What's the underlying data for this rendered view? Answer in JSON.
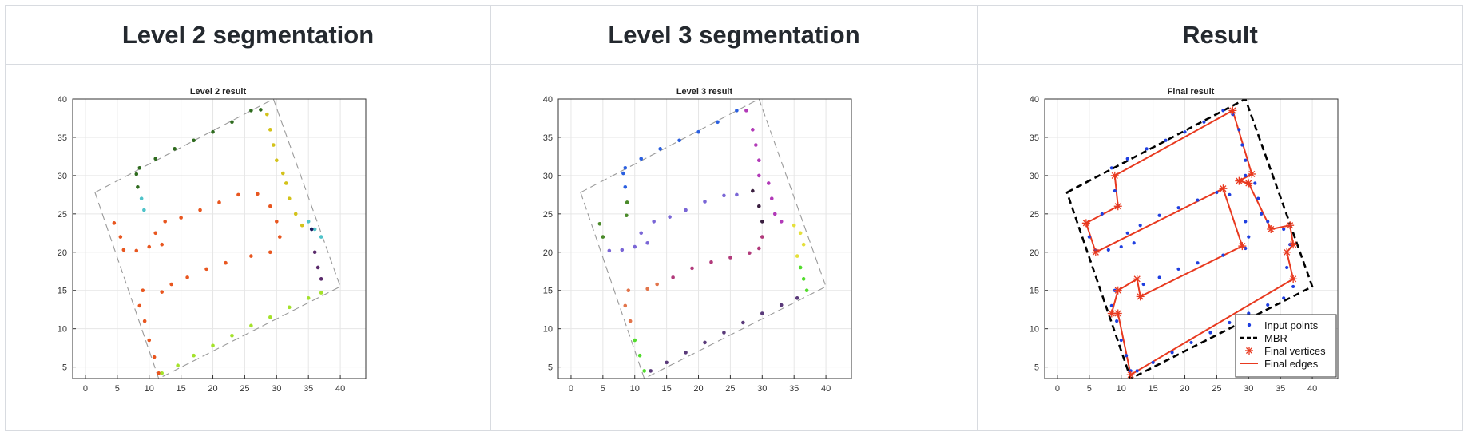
{
  "headers": [
    "Level 2 segmentation",
    "Level 3 segmentation",
    "Result"
  ],
  "panels": [
    {
      "title": "Level 2 result"
    },
    {
      "title": "Level 3 result"
    },
    {
      "title": "Final result"
    }
  ],
  "legend": [
    "Input points",
    "MBR",
    "Final vertices",
    "Final edges"
  ],
  "colors": {
    "points_blue": "#1f3fe0",
    "mbr": "#000000",
    "vertices_red": "#e8391f",
    "edges_red": "#e8391f"
  },
  "chart_data": [
    {
      "type": "scatter",
      "title": "Level 2 result",
      "xlim": [
        -2,
        44
      ],
      "ylim": [
        3.5,
        40
      ],
      "xticks": [
        "0",
        "5",
        "10",
        "15",
        "20",
        "25",
        "30",
        "35",
        "40"
      ],
      "yticks": [
        "5",
        "10",
        "15",
        "20",
        "25",
        "30",
        "35",
        "40"
      ],
      "grid": true,
      "mbr": [
        [
          1.5,
          27.8
        ],
        [
          29.5,
          40
        ],
        [
          40,
          15.5
        ],
        [
          11.5,
          3.5
        ]
      ],
      "series": [
        {
          "color": "#2e6b1e",
          "values": [
            [
              8.5,
              31
            ],
            [
              11,
              32.2
            ],
            [
              14,
              33.5
            ],
            [
              17,
              34.6
            ],
            [
              20,
              35.7
            ],
            [
              23,
              37
            ],
            [
              26,
              38.5
            ],
            [
              27.5,
              38.6
            ],
            [
              8,
              30.2
            ],
            [
              8.2,
              28.5
            ]
          ]
        },
        {
          "color": "#d3c21a",
          "values": [
            [
              28.5,
              38
            ],
            [
              29,
              36
            ],
            [
              29.5,
              34
            ],
            [
              30,
              32
            ],
            [
              31,
              30.3
            ],
            [
              31.5,
              29
            ],
            [
              32,
              27
            ],
            [
              33,
              25
            ],
            [
              34,
              23.5
            ]
          ]
        },
        {
          "color": "#4fc3c9",
          "values": [
            [
              8.8,
              27
            ],
            [
              9.2,
              25.5
            ],
            [
              35,
              24
            ],
            [
              36,
              23
            ],
            [
              37,
              22
            ]
          ]
        },
        {
          "color": "#e8561f",
          "values": [
            [
              4.5,
              23.8
            ],
            [
              5.5,
              22
            ],
            [
              6,
              20.3
            ],
            [
              8,
              20.2
            ],
            [
              10,
              20.7
            ],
            [
              12,
              21
            ],
            [
              11,
              22.5
            ],
            [
              12.5,
              24
            ],
            [
              15,
              24.5
            ],
            [
              18,
              25.5
            ],
            [
              21,
              26.5
            ],
            [
              24,
              27.5
            ],
            [
              27,
              27.6
            ],
            [
              29,
              26
            ],
            [
              30,
              24
            ],
            [
              30.5,
              22
            ],
            [
              29,
              20
            ],
            [
              26,
              19.5
            ],
            [
              22,
              18.6
            ],
            [
              19,
              17.8
            ],
            [
              16,
              16.7
            ],
            [
              13.5,
              15.8
            ],
            [
              12,
              14.8
            ],
            [
              9,
              15
            ],
            [
              8.5,
              13
            ],
            [
              9.3,
              11
            ],
            [
              10,
              8.5
            ],
            [
              10.8,
              6.3
            ],
            [
              11.5,
              4.2
            ]
          ]
        },
        {
          "color": "#a4e22b",
          "values": [
            [
              12,
              4.2
            ],
            [
              14.5,
              5.2
            ],
            [
              17,
              6.5
            ],
            [
              20,
              7.8
            ],
            [
              23,
              9.1
            ],
            [
              26,
              10.4
            ],
            [
              29,
              11.5
            ],
            [
              32,
              12.8
            ],
            [
              35,
              14
            ],
            [
              37,
              14.7
            ]
          ]
        },
        {
          "color": "#1a1a5e",
          "values": [
            [
              35.5,
              23
            ]
          ]
        },
        {
          "color": "#5a2a6b",
          "values": [
            [
              36,
              20
            ],
            [
              36.5,
              18
            ],
            [
              37,
              16.5
            ]
          ]
        }
      ]
    },
    {
      "type": "scatter",
      "title": "Level 3 result",
      "xlim": [
        -2,
        44
      ],
      "ylim": [
        3.5,
        40
      ],
      "xticks": [
        "0",
        "5",
        "10",
        "15",
        "20",
        "25",
        "30",
        "35",
        "40"
      ],
      "yticks": [
        "5",
        "10",
        "15",
        "20",
        "25",
        "30",
        "35",
        "40"
      ],
      "grid": true,
      "mbr": [
        [
          1.5,
          27.8
        ],
        [
          29.5,
          40
        ],
        [
          40,
          15.5
        ],
        [
          11.5,
          3.5
        ]
      ],
      "series": [
        {
          "color": "#2a5fe0",
          "values": [
            [
              8.5,
              31
            ],
            [
              11,
              32.2
            ],
            [
              14,
              33.5
            ],
            [
              17,
              34.6
            ],
            [
              20,
              35.7
            ],
            [
              23,
              37
            ],
            [
              26,
              38.5
            ],
            [
              8.2,
              30.3
            ],
            [
              8.5,
              28.5
            ]
          ]
        },
        {
          "color": "#b23ab8",
          "values": [
            [
              27.5,
              38.5
            ],
            [
              28.5,
              36
            ],
            [
              29,
              34
            ],
            [
              29.5,
              32
            ],
            [
              29.5,
              30
            ],
            [
              31,
              29
            ],
            [
              31.5,
              27
            ],
            [
              32,
              25
            ],
            [
              33,
              24
            ]
          ]
        },
        {
          "color": "#4a8a2a",
          "values": [
            [
              8.8,
              26.5
            ],
            [
              8.7,
              24.8
            ],
            [
              4.5,
              23.7
            ],
            [
              5,
              22
            ]
          ]
        },
        {
          "color": "#7a66d6",
          "values": [
            [
              6,
              20.2
            ],
            [
              8,
              20.3
            ],
            [
              10,
              20.7
            ],
            [
              12,
              21.2
            ],
            [
              11,
              22.5
            ],
            [
              13,
              24
            ],
            [
              15.5,
              24.6
            ],
            [
              18,
              25.5
            ],
            [
              21,
              26.6
            ],
            [
              24,
              27.4
            ],
            [
              26,
              27.5
            ]
          ]
        },
        {
          "color": "#b13a7b",
          "values": [
            [
              16,
              16.7
            ],
            [
              19,
              17.9
            ],
            [
              22,
              18.7
            ],
            [
              25,
              19.3
            ],
            [
              28,
              19.9
            ],
            [
              29.5,
              20.5
            ],
            [
              30,
              22
            ]
          ]
        },
        {
          "color": "#e2744a",
          "values": [
            [
              9,
              15
            ],
            [
              12,
              15.2
            ],
            [
              13.5,
              15.8
            ],
            [
              8.5,
              13
            ],
            [
              9.3,
              11
            ]
          ]
        },
        {
          "color": "#52dc2d",
          "values": [
            [
              10,
              8.5
            ],
            [
              10.8,
              6.5
            ],
            [
              11.5,
              4.5
            ],
            [
              36,
              18
            ],
            [
              36.5,
              16.5
            ],
            [
              37,
              15
            ]
          ]
        },
        {
          "color": "#5a3a7a",
          "values": [
            [
              12.5,
              4.5
            ],
            [
              15,
              5.6
            ],
            [
              18,
              6.9
            ],
            [
              21,
              8.2
            ],
            [
              24,
              9.5
            ],
            [
              27,
              10.8
            ],
            [
              30,
              12
            ],
            [
              33,
              13.1
            ],
            [
              35.5,
              14
            ]
          ]
        },
        {
          "color": "#e5e03a",
          "values": [
            [
              35,
              23.5
            ],
            [
              36,
              22.5
            ],
            [
              36.5,
              21
            ],
            [
              35.5,
              19.5
            ]
          ]
        },
        {
          "color": "#3a1e3f",
          "values": [
            [
              28.5,
              28
            ],
            [
              29.5,
              26
            ],
            [
              30,
              24
            ]
          ]
        }
      ]
    },
    {
      "type": "scatter",
      "title": "Final result",
      "xlim": [
        -2,
        44
      ],
      "ylim": [
        3.5,
        40
      ],
      "xticks": [
        "0",
        "5",
        "10",
        "15",
        "20",
        "25",
        "30",
        "35",
        "40"
      ],
      "yticks": [
        "5",
        "10",
        "15",
        "20",
        "25",
        "30",
        "35",
        "40"
      ],
      "grid": true,
      "mbr": [
        [
          1.5,
          27.8
        ],
        [
          29.5,
          40
        ],
        [
          40,
          15.5
        ],
        [
          11.5,
          3.5
        ]
      ],
      "points": [
        [
          8.5,
          31
        ],
        [
          11,
          32.2
        ],
        [
          14,
          33.5
        ],
        [
          17,
          34.6
        ],
        [
          20,
          35.7
        ],
        [
          23,
          37
        ],
        [
          26,
          38.5
        ],
        [
          27.5,
          38
        ],
        [
          28.5,
          36
        ],
        [
          29,
          34
        ],
        [
          29.5,
          32
        ],
        [
          29.5,
          30
        ],
        [
          31,
          29
        ],
        [
          31.5,
          27
        ],
        [
          32,
          25
        ],
        [
          33,
          24
        ],
        [
          9,
          28
        ],
        [
          9.5,
          26
        ],
        [
          7,
          25
        ],
        [
          5,
          22
        ],
        [
          6,
          20.2
        ],
        [
          8,
          20.3
        ],
        [
          10,
          20.7
        ],
        [
          12,
          21.2
        ],
        [
          11,
          22.5
        ],
        [
          13,
          23.5
        ],
        [
          16,
          24.8
        ],
        [
          19,
          25.8
        ],
        [
          22,
          26.8
        ],
        [
          25,
          27.8
        ],
        [
          27,
          27.5
        ],
        [
          29.5,
          24
        ],
        [
          30,
          22
        ],
        [
          29.5,
          20.5
        ],
        [
          26,
          19.6
        ],
        [
          22,
          18.6
        ],
        [
          19,
          17.8
        ],
        [
          16,
          16.7
        ],
        [
          13.5,
          15.8
        ],
        [
          9,
          15
        ],
        [
          8.5,
          13
        ],
        [
          9.3,
          11
        ],
        [
          10,
          8.5
        ],
        [
          10.8,
          6.5
        ],
        [
          11.5,
          4.5
        ],
        [
          12.5,
          4.5
        ],
        [
          15,
          5.6
        ],
        [
          18,
          6.9
        ],
        [
          21,
          8.2
        ],
        [
          24,
          9.5
        ],
        [
          27,
          10.8
        ],
        [
          30,
          12
        ],
        [
          33,
          13.1
        ],
        [
          35.5,
          14
        ],
        [
          37,
          15.5
        ],
        [
          36,
          18
        ],
        [
          36.5,
          21
        ],
        [
          35.5,
          23
        ],
        [
          36.5,
          23.5
        ]
      ],
      "vertices": [
        [
          4.5,
          23.8
        ],
        [
          9,
          30
        ],
        [
          27.5,
          38.5
        ],
        [
          30.5,
          30.2
        ],
        [
          28.5,
          29.3
        ],
        [
          30,
          29
        ],
        [
          33.5,
          23
        ],
        [
          36.5,
          23.5
        ],
        [
          37,
          21
        ],
        [
          36,
          20
        ],
        [
          37,
          16.5
        ],
        [
          11.5,
          4
        ],
        [
          9.5,
          12
        ],
        [
          8.5,
          12
        ],
        [
          9.5,
          15
        ],
        [
          12.5,
          16.5
        ],
        [
          13,
          14.2
        ],
        [
          29,
          20.8
        ],
        [
          26,
          28.3
        ],
        [
          6,
          20
        ],
        [
          9.5,
          26
        ]
      ],
      "edges": [
        [
          4.5,
          23.8
        ],
        [
          9.5,
          26
        ],
        [
          9,
          30
        ],
        [
          27.5,
          38.5
        ],
        [
          30.5,
          30.2
        ],
        [
          28.5,
          29.3
        ],
        [
          30,
          29
        ],
        [
          33.5,
          23
        ],
        [
          36.5,
          23.5
        ],
        [
          37,
          21
        ],
        [
          36,
          20
        ],
        [
          37,
          16.5
        ],
        [
          11.5,
          4
        ],
        [
          9.5,
          12
        ],
        [
          8.5,
          12
        ],
        [
          9.5,
          15
        ],
        [
          12.5,
          16.5
        ],
        [
          13,
          14.2
        ],
        [
          29,
          20.8
        ],
        [
          26,
          28.3
        ],
        [
          6,
          20
        ],
        [
          4.5,
          23.8
        ]
      ],
      "legend": "lower-right"
    }
  ]
}
